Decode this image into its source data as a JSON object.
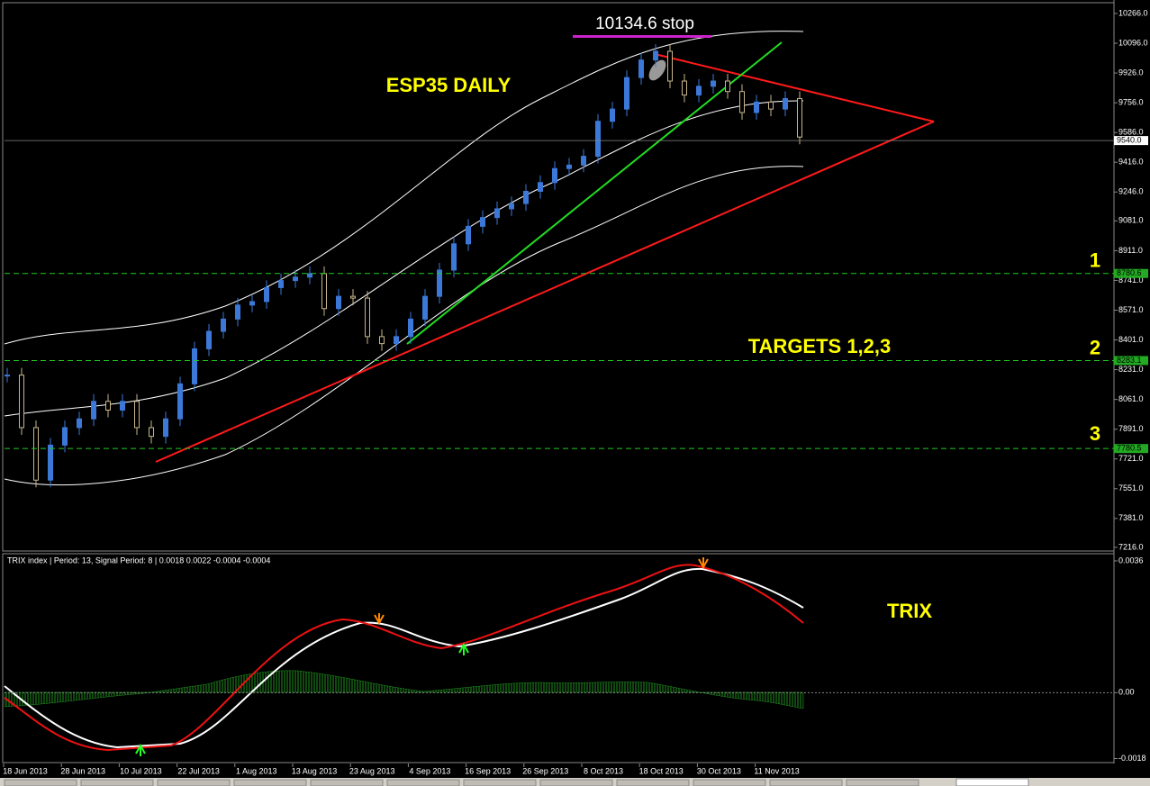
{
  "chart_data": {
    "type": "candlestick",
    "title": "ESP35 DAILY",
    "stop_label": "10134.6 stop",
    "stop_level": 10134.6,
    "targets_label": "TARGETS 1,2,3",
    "closes": [
      8200,
      7900,
      7600,
      7800,
      7900,
      7950,
      8050,
      8000,
      8050,
      7900,
      7850,
      7950,
      8150,
      8350,
      8450,
      8520,
      8600,
      8620,
      8700,
      8740,
      8760,
      8780,
      8580,
      8650,
      8640,
      8420,
      8380,
      8420,
      8520,
      8650,
      8800,
      8950,
      9050,
      9100,
      9150,
      9180,
      9250,
      9300,
      9380,
      9400,
      9450,
      9650,
      9720,
      9900,
      10000,
      10050,
      9880,
      9800,
      9850,
      9880,
      9820,
      9700,
      9760,
      9720,
      9780,
      9560
    ],
    "up_color": "#3c78d8",
    "down_color": "#c8b68b",
    "ylim": [
      7195,
      10343
    ],
    "yticks": [
      {
        "value": 10266,
        "label": "10266.0"
      },
      {
        "value": 10096,
        "label": "10096.0"
      },
      {
        "value": 9926,
        "label": "9926.0"
      },
      {
        "value": 9756,
        "label": "9756.0"
      },
      {
        "value": 9586,
        "label": "9586.0"
      },
      {
        "value": 9416,
        "label": "9416.0"
      },
      {
        "value": 9246,
        "label": "9246.0"
      },
      {
        "value": 9081,
        "label": "9081.0"
      },
      {
        "value": 8911,
        "label": "8911.0"
      },
      {
        "value": 8741,
        "label": "8741.0"
      },
      {
        "value": 8571,
        "label": "8571.0"
      },
      {
        "value": 8401,
        "label": "8401.0"
      },
      {
        "value": 8231,
        "label": "8231.0"
      },
      {
        "value": 8061,
        "label": "8061.0"
      },
      {
        "value": 7891,
        "label": "7891.0"
      },
      {
        "value": 7721,
        "label": "7721.0"
      },
      {
        "value": 7551,
        "label": "7551.0"
      },
      {
        "value": 7381,
        "label": "7381.0"
      },
      {
        "value": 7216,
        "label": "7216.0"
      }
    ],
    "current": {
      "value": 9540,
      "label": "9540.0"
    },
    "levels": [
      {
        "value": 8780.6,
        "label": "8780.6",
        "target": "1"
      },
      {
        "value": 8283.1,
        "label": "8283.1",
        "target": "2"
      },
      {
        "value": 7780.5,
        "label": "7780.5",
        "target": "3"
      }
    ],
    "dates": [
      "18 Jun 2013",
      "28 Jun 2013",
      "10 Jul 2013",
      "22 Jul 2013",
      "1 Aug 2013",
      "13 Aug 2013",
      "23 Aug 2013",
      "4 Sep 2013",
      "16 Sep 2013",
      "26 Sep 2013",
      "8 Oct 2013",
      "18 Oct 2013",
      "30 Oct 2013",
      "11 Nov 2013"
    ],
    "trix": {
      "header": "TRIX index | Period: 13, Signal Period: 8 |  0.0018 0.0022 -0.0004 -0.0004",
      "label": "TRIX",
      "ylim": [
        -0.001935,
        0.003796
      ],
      "yticks": [
        0.0036,
        {
          "value": 0,
          "label": "0.00"
        },
        -0.0018
      ]
    }
  }
}
